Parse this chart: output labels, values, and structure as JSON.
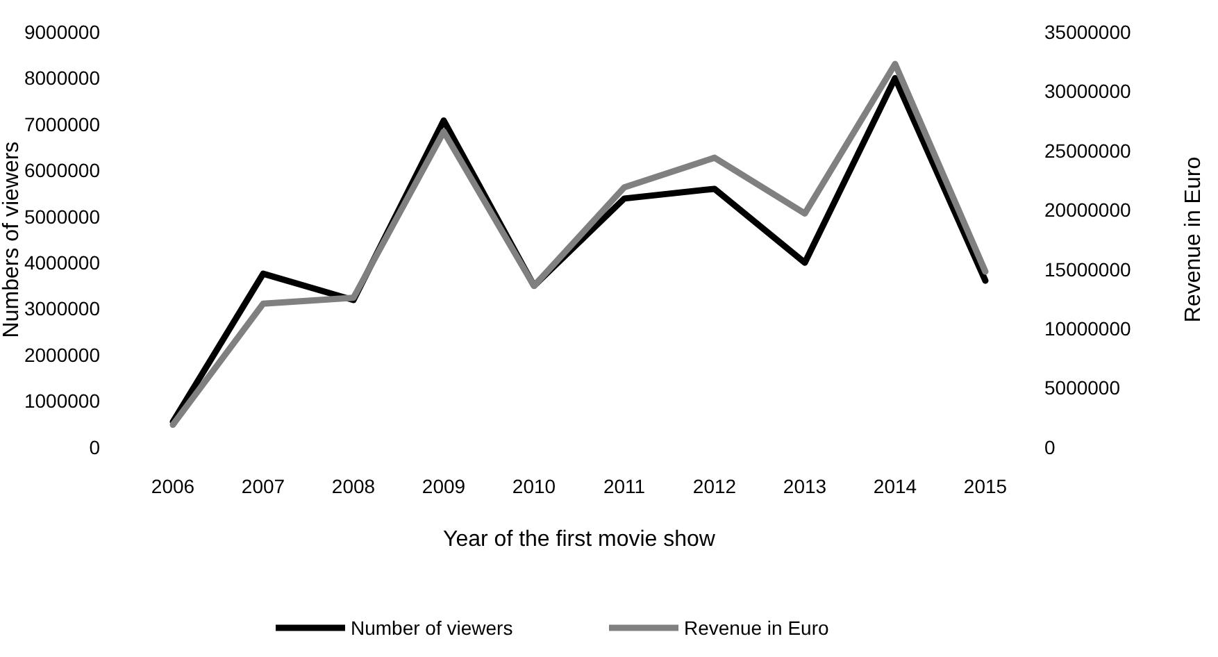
{
  "chart_data": {
    "type": "line",
    "xlabel": "Year of the first movie show",
    "ylabel": "Numbers of viewers",
    "y2label": "Revenue in Euro",
    "categories": [
      "2006",
      "2007",
      "2008",
      "2009",
      "2010",
      "2011",
      "2012",
      "2013",
      "2014",
      "2015"
    ],
    "series": [
      {
        "name": "Number of viewers",
        "color": "#000000",
        "values": [
          550000,
          3760000,
          3190000,
          7080000,
          3500000,
          5390000,
          5600000,
          4000000,
          8000000,
          3610000
        ]
      },
      {
        "name": "Revenue in Euro",
        "color": "#808080",
        "axis": "y2",
        "values": [
          1900000,
          12100000,
          12600000,
          26600000,
          13600000,
          21900000,
          24400000,
          19700000,
          32300000,
          14800000
        ]
      }
    ],
    "ylim": [
      0,
      9000000
    ],
    "yticks": [
      0,
      1000000,
      2000000,
      3000000,
      4000000,
      5000000,
      6000000,
      7000000,
      8000000,
      9000000
    ],
    "y2lim": [
      0,
      35000000
    ],
    "y2ticks": [
      0,
      5000000,
      10000000,
      15000000,
      20000000,
      25000000,
      30000000,
      35000000
    ],
    "grid": false,
    "legend": "bottom",
    "marker": "none",
    "line_style": "solid"
  }
}
